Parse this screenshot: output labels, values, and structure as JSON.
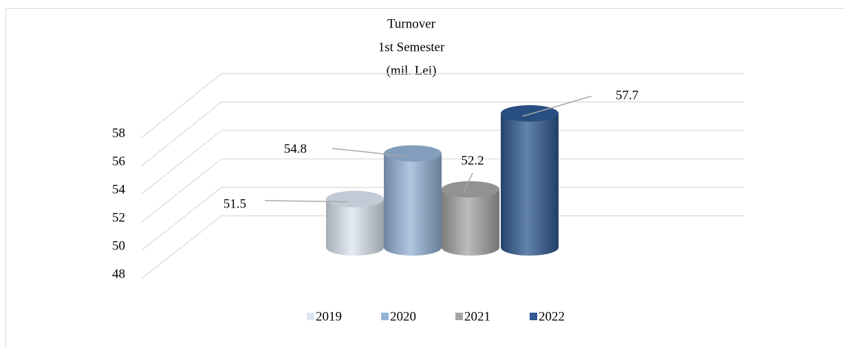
{
  "chart_data": {
    "type": "bar",
    "title": [
      "Turnover",
      "1st Semester",
      "(mil. Lei)"
    ],
    "series": [
      {
        "name": "2019",
        "color": "#dce6f2",
        "values": [
          51.5
        ]
      },
      {
        "name": "2020",
        "color": "#95b3d7",
        "values": [
          54.8
        ]
      },
      {
        "name": "2021",
        "color": "#a6a6a6",
        "values": [
          52.2
        ]
      },
      {
        "name": "2022",
        "color": "#2e5a91",
        "values": [
          57.7
        ]
      }
    ],
    "ylim": [
      48,
      58
    ],
    "yticks": [
      48,
      50,
      52,
      54,
      56,
      58
    ],
    "grid": true,
    "legend": "bottom"
  }
}
